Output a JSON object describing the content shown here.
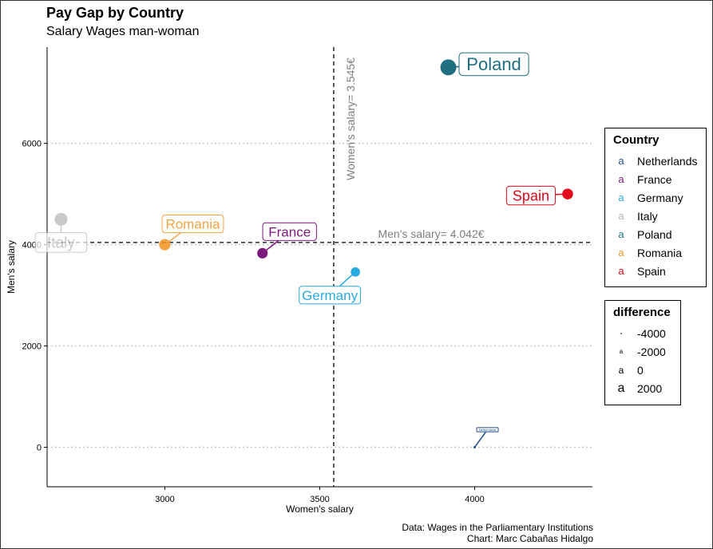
{
  "title": "Pay Gap by Country",
  "subtitle": "Salary Wages man-woman",
  "caption_line1": "Data: Wages in the Parliamentary Institutions",
  "caption_line2": "Chart: Marc Cabañas Hidalgo",
  "chart_data": {
    "type": "scatter",
    "xlabel": "Women's salary",
    "ylabel": "Men's salary",
    "xlim": [
      2620,
      4380
    ],
    "ylim": [
      -780,
      7900
    ],
    "x_ticks": [
      3000,
      3500,
      4000
    ],
    "y_ticks": [
      0,
      2000,
      4000,
      6000
    ],
    "grid": "horizontal dotted",
    "vline": {
      "value": 3545,
      "label": "Women's salary= 3.545€"
    },
    "hline": {
      "value": 4042,
      "label": "Men's salary= 4.042€"
    },
    "points": [
      {
        "country": "Netherlands",
        "x": 4000,
        "y": 0,
        "difference": -4000,
        "color": "#1f4e8c"
      },
      {
        "country": "France",
        "x": 3315,
        "y": 3830,
        "difference": 515,
        "color": "#7b1a7b"
      },
      {
        "country": "Germany",
        "x": 3615,
        "y": 3460,
        "difference": -155,
        "color": "#29abe2"
      },
      {
        "country": "Italy",
        "x": 2665,
        "y": 4500,
        "difference": 1835,
        "color": "#b3b3b3"
      },
      {
        "country": "Poland",
        "x": 3915,
        "y": 7500,
        "difference": 3585,
        "color": "#1f6f80"
      },
      {
        "country": "Romania",
        "x": 3000,
        "y": 4000,
        "difference": 1000,
        "color": "#f2931e"
      },
      {
        "country": "Spain",
        "x": 4300,
        "y": 5000,
        "difference": 700,
        "color": "#e3071b"
      }
    ],
    "legend_country": {
      "title": "Country",
      "items": [
        {
          "label": "Netherlands",
          "color": "#1f4e8c"
        },
        {
          "label": "France",
          "color": "#7b1a7b"
        },
        {
          "label": "Germany",
          "color": "#29abe2"
        },
        {
          "label": "Italy",
          "color": "#b3b3b3"
        },
        {
          "label": "Poland",
          "color": "#1f6f80"
        },
        {
          "label": "Romania",
          "color": "#f2931e"
        },
        {
          "label": "Spain",
          "color": "#e3071b"
        }
      ]
    },
    "legend_difference": {
      "title": "difference",
      "items": [
        {
          "label": "-4000",
          "value": -4000
        },
        {
          "label": "-2000",
          "value": -2000
        },
        {
          "label": "0",
          "value": 0
        },
        {
          "label": "2000",
          "value": 2000
        }
      ]
    }
  }
}
